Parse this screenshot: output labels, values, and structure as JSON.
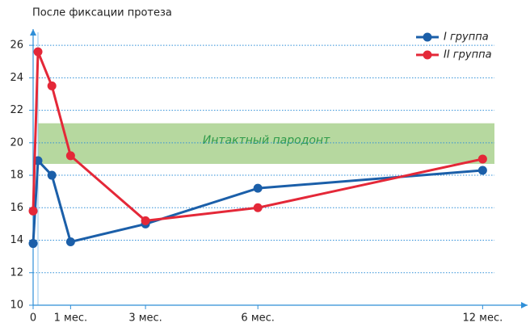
{
  "chart_data": {
    "type": "line",
    "title": "После фиксации протеза",
    "x": [
      0,
      0.13,
      0.5,
      1,
      3,
      6,
      12
    ],
    "series": [
      {
        "name": "I группа",
        "color": "#1b5fa9",
        "values": [
          13.8,
          18.9,
          18.0,
          13.9,
          15.0,
          17.2,
          18.3
        ]
      },
      {
        "name": "II группа",
        "color": "#e42838",
        "values": [
          15.8,
          25.6,
          23.5,
          19.2,
          15.2,
          16.0,
          19.0
        ]
      }
    ],
    "band": {
      "label": "Интактный пародонт",
      "range": [
        18.7,
        21.2
      ],
      "color": "#a9d18e"
    },
    "xlim": [
      0,
      13.2
    ],
    "xticks": [
      0,
      {
        "value": 1,
        "label": "1 мес."
      },
      {
        "value": 3,
        "label": "3 мес."
      },
      {
        "value": 6,
        "label": "6 мес."
      },
      {
        "value": 12,
        "label": "12 мес."
      }
    ],
    "ylim": [
      10,
      27
    ],
    "yticks": [
      10,
      12,
      14,
      16,
      18,
      20,
      22,
      24,
      26
    ],
    "grid": true,
    "legend": "top-right"
  }
}
